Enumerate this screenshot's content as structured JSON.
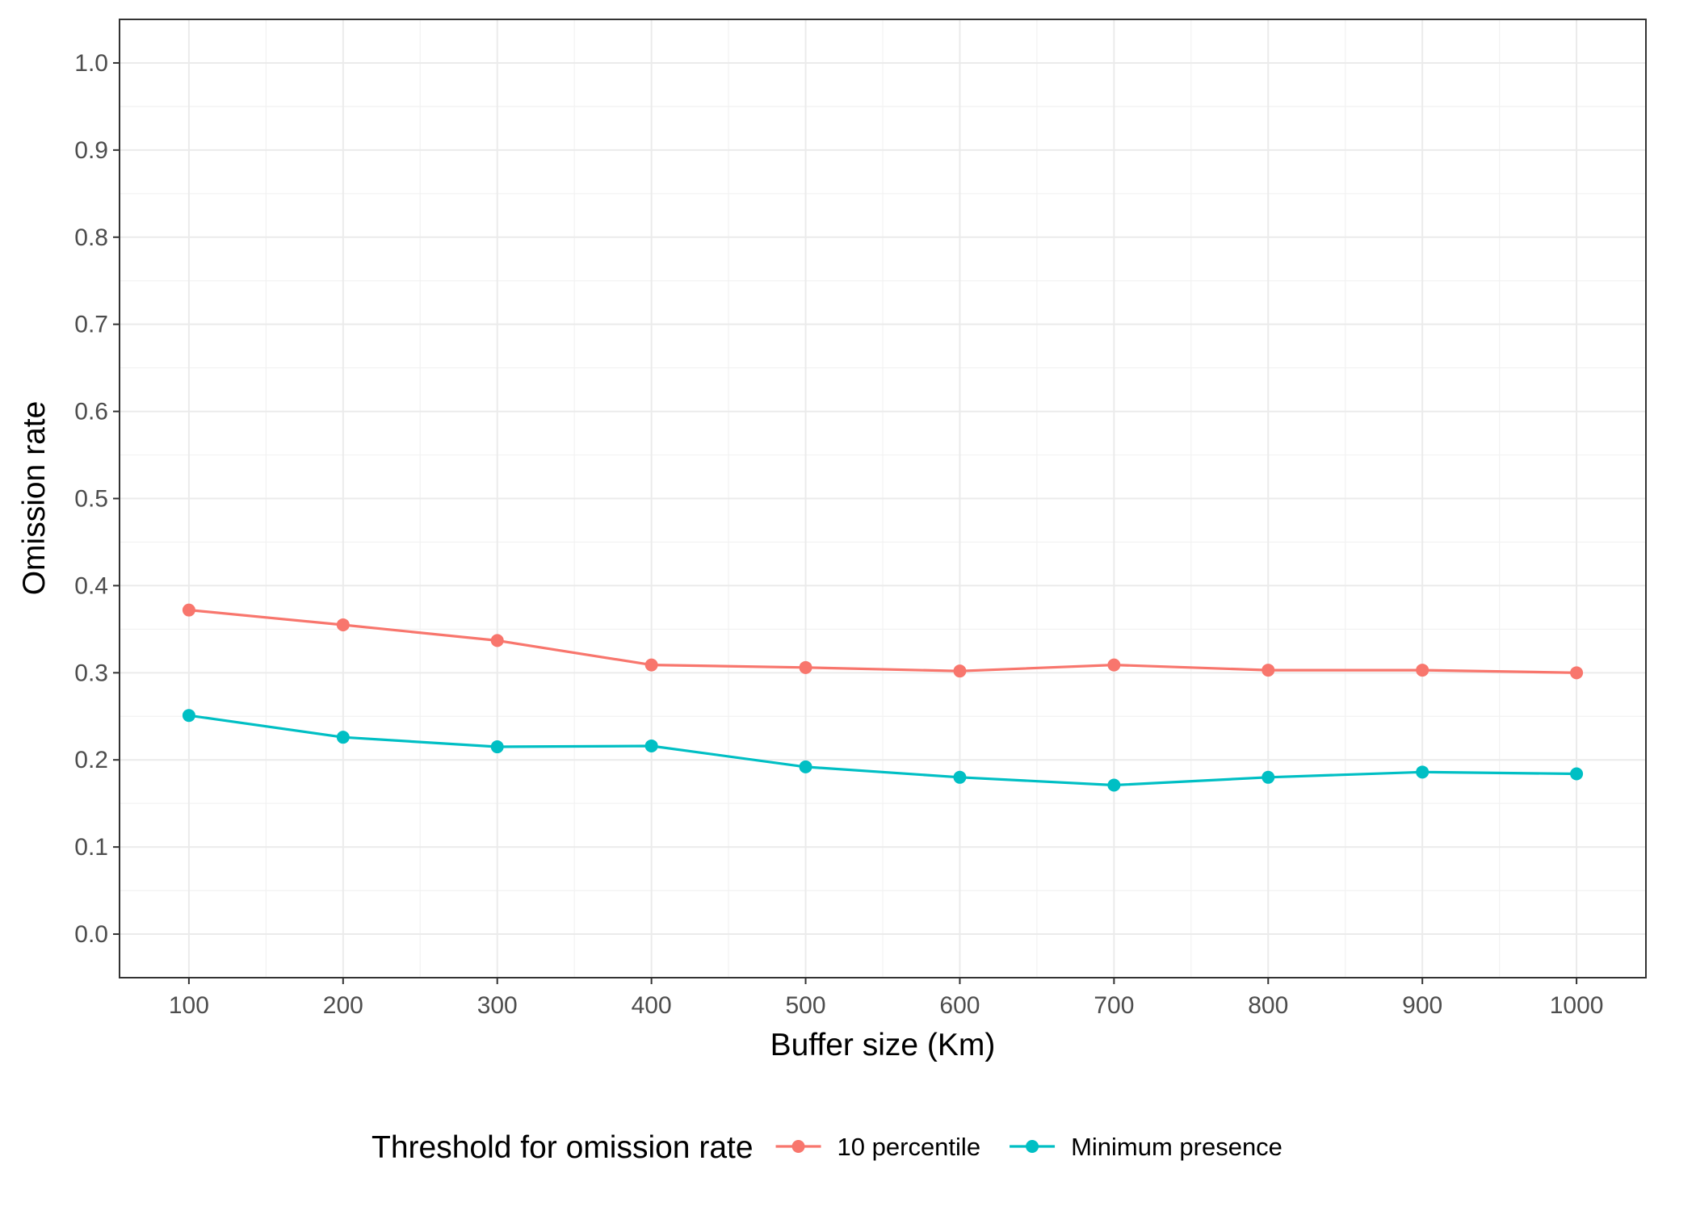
{
  "chart_data": {
    "type": "line",
    "xlabel": "Buffer size (Km)",
    "ylabel": "Omission rate",
    "x": [
      100,
      200,
      300,
      400,
      500,
      600,
      700,
      800,
      900,
      1000
    ],
    "x_ticks": [
      "100",
      "200",
      "300",
      "400",
      "500",
      "600",
      "700",
      "800",
      "900",
      "1000"
    ],
    "y_ticks": [
      "0.0",
      "0.1",
      "0.2",
      "0.3",
      "0.4",
      "0.5",
      "0.6",
      "0.7",
      "0.8",
      "0.9",
      "1.0"
    ],
    "xlim": [
      55,
      1045
    ],
    "ylim": [
      -0.05,
      1.05
    ],
    "grid": true,
    "legend": {
      "title": "Threshold for omission rate",
      "position": "bottom"
    },
    "series": [
      {
        "name": "10 percentile",
        "color": "#F8766D",
        "values": [
          0.372,
          0.355,
          0.337,
          0.309,
          0.306,
          0.302,
          0.309,
          0.303,
          0.303,
          0.3
        ]
      },
      {
        "name": "Minimum presence",
        "color": "#00BFC4",
        "values": [
          0.251,
          0.226,
          0.215,
          0.216,
          0.192,
          0.18,
          0.171,
          0.18,
          0.186,
          0.184
        ]
      }
    ]
  }
}
